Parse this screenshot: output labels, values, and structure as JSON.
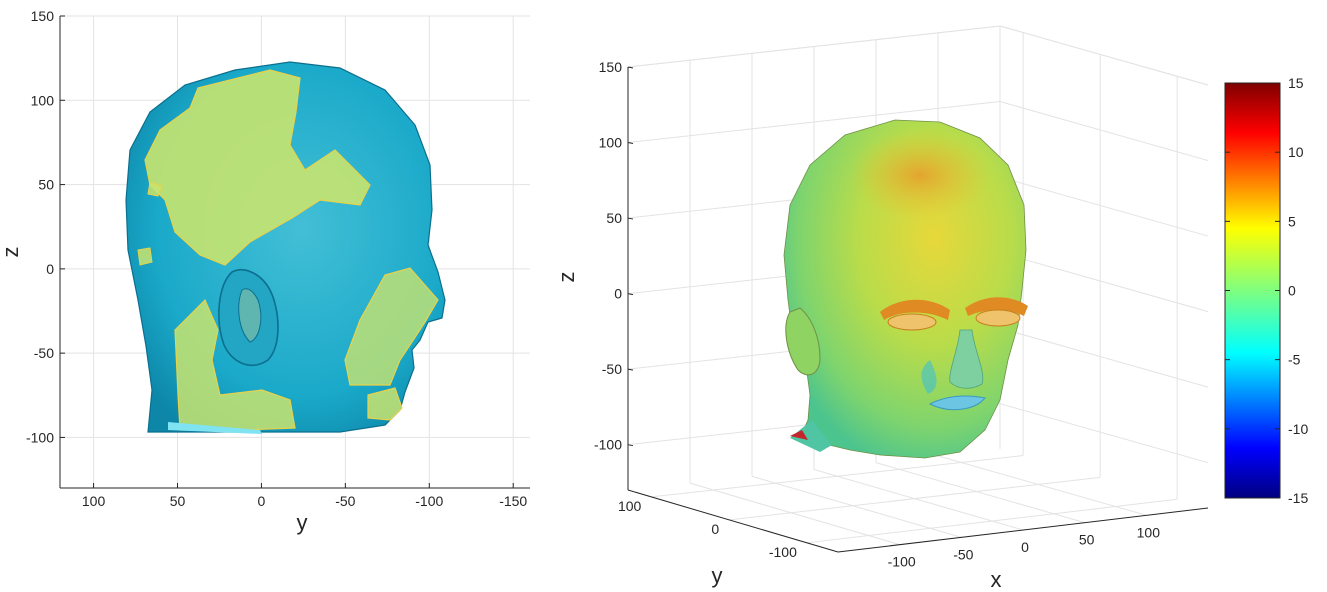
{
  "chart_data": [
    {
      "type": "surface",
      "view": "2D side view",
      "xlabel": "y",
      "ylabel": "z",
      "xticks": [
        100,
        50,
        0,
        -50,
        -100,
        -150
      ],
      "yticks": [
        150,
        100,
        50,
        0,
        -50,
        -100
      ],
      "xlim": [
        120,
        -160
      ],
      "ylim": [
        -130,
        150
      ],
      "x_reversed": true,
      "grid": true,
      "colors": {
        "surface": "#1aa9c9",
        "patch": "#c8e46f",
        "edge": "#e8d24a"
      }
    },
    {
      "type": "surface",
      "view": "3D perspective",
      "xlabel": "x",
      "ylabel": "y",
      "zlabel": "z",
      "xticks": [
        -100,
        -50,
        0,
        50,
        100
      ],
      "yticks": [
        100,
        0,
        -100
      ],
      "zticks": [
        150,
        100,
        50,
        0,
        -50,
        -100
      ],
      "grid": true,
      "colorbar": {
        "ticks": [
          15,
          10,
          5,
          0,
          -5,
          -10,
          -15
        ],
        "lim": [
          -15,
          15
        ],
        "colormap": "jet"
      }
    }
  ]
}
